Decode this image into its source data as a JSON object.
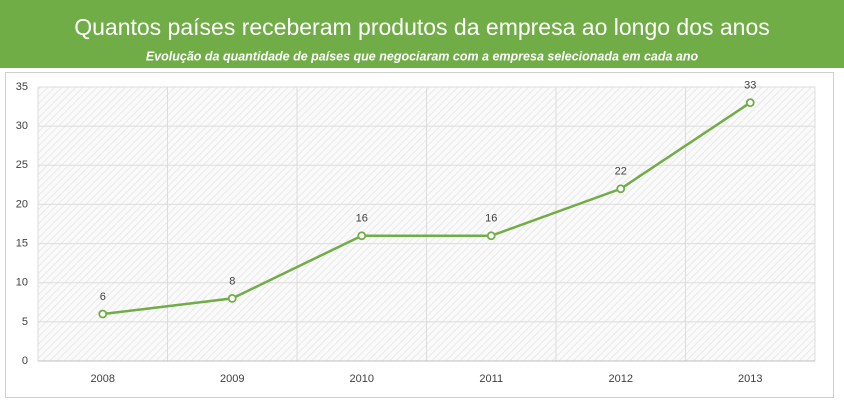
{
  "chart_data": {
    "type": "line",
    "title": "Quantos países receberam produtos da empresa ao longo dos anos",
    "subtitle": "Evolução da quantidade de países que negociaram com a empresa selecionada em cada ano",
    "categories": [
      "2008",
      "2009",
      "2010",
      "2011",
      "2012",
      "2013"
    ],
    "values": [
      6,
      8,
      16,
      16,
      22,
      33
    ],
    "color": "#70ad47",
    "ylim": [
      0,
      35
    ],
    "yticks": [
      0,
      5,
      10,
      15,
      20,
      25,
      30,
      35
    ],
    "grid": true
  }
}
